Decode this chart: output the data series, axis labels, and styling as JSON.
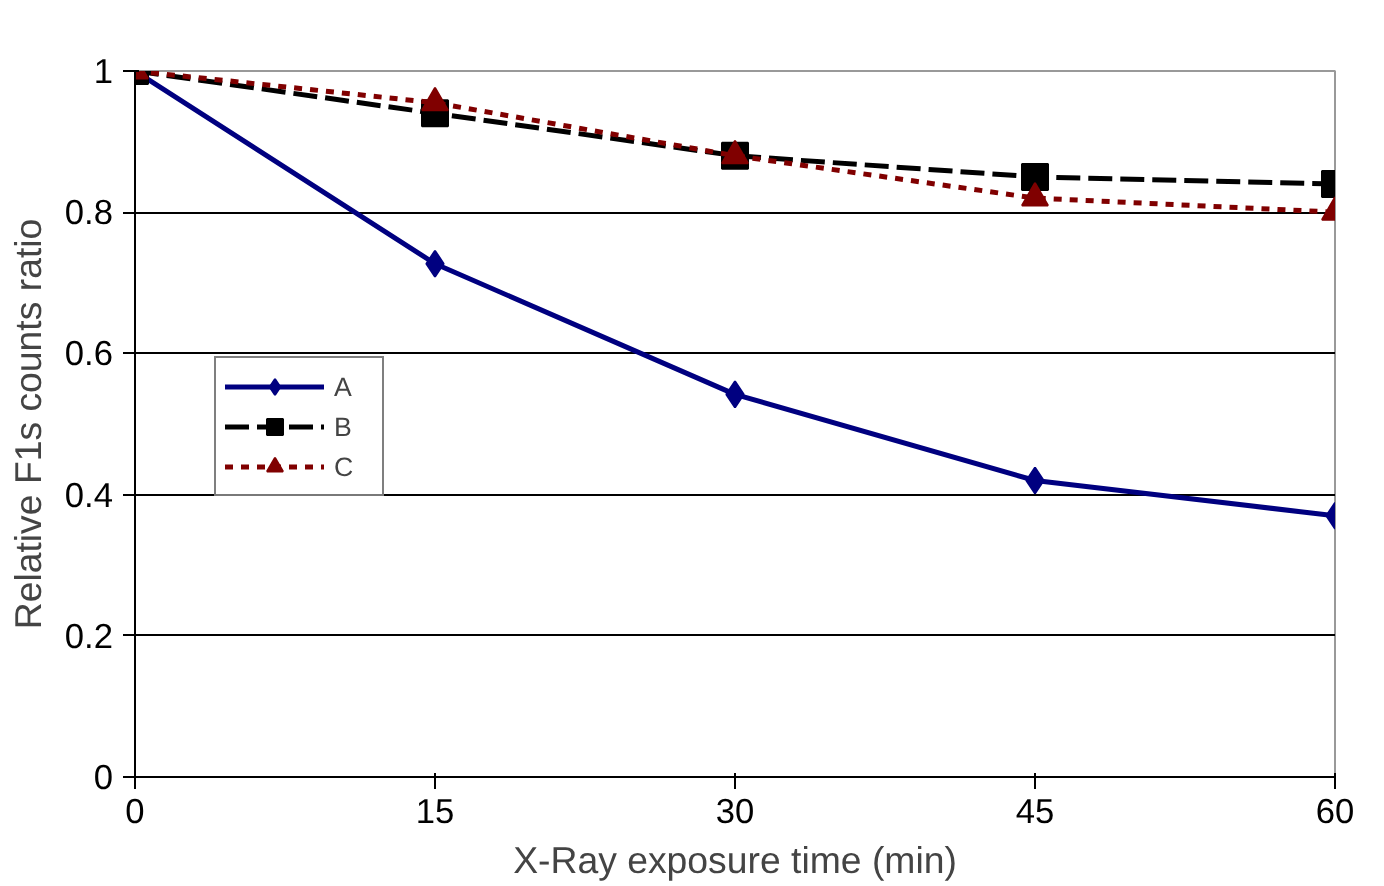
{
  "chart_data": {
    "type": "line",
    "xlabel": "X-Ray exposure time (min)",
    "ylabel": "Relative F1s counts ratio",
    "x": [
      0,
      15,
      30,
      45,
      60
    ],
    "xlim": [
      0,
      60
    ],
    "xticks": [
      0,
      15,
      30,
      45,
      60
    ],
    "ylim": [
      0,
      1
    ],
    "yticks": [
      0,
      0.2,
      0.4,
      0.6,
      0.8,
      1
    ],
    "grid": "y",
    "legend": "left",
    "series": [
      {
        "name": "A",
        "color": "#000080",
        "values": [
          1,
          0.727,
          0.542,
          0.42,
          0.37
        ],
        "marker": "diamond",
        "line_style": "solid"
      },
      {
        "name": "B",
        "color": "#000000",
        "values": [
          1,
          0.94,
          0.88,
          0.85,
          0.84
        ],
        "marker": "square",
        "line_style": "dashed"
      },
      {
        "name": "C",
        "color": "#800000",
        "values": [
          1,
          0.955,
          0.88,
          0.82,
          0.8
        ],
        "marker": "triangle",
        "line_style": "dotted"
      }
    ]
  }
}
